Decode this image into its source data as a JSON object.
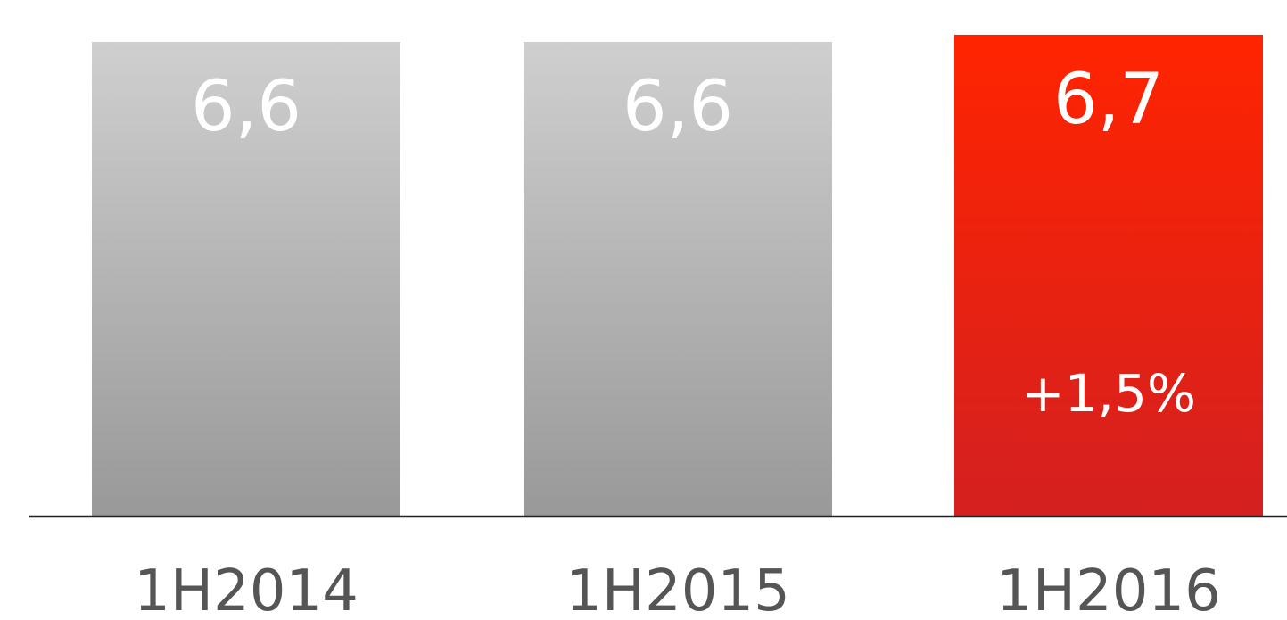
{
  "chart_data": {
    "type": "bar",
    "categories": [
      "1H2014",
      "1H2015",
      "1H2016"
    ],
    "values": [
      6.6,
      6.6,
      6.7
    ],
    "value_labels": [
      "6,6",
      "6,6",
      "6,7"
    ],
    "annotations": [
      {
        "category": "1H2016",
        "text": "+1,5%"
      }
    ],
    "highlight_category": "1H2016",
    "colors": {
      "default_top": "#cfcfcf",
      "default_bottom": "#999999",
      "highlight_top": "#ff2400",
      "highlight_bottom": "#d42020",
      "baseline": "#222222",
      "category_text": "#555555",
      "value_text": "#ffffff"
    },
    "title": "",
    "xlabel": "",
    "ylabel": "",
    "legend": "none",
    "grid": false
  }
}
